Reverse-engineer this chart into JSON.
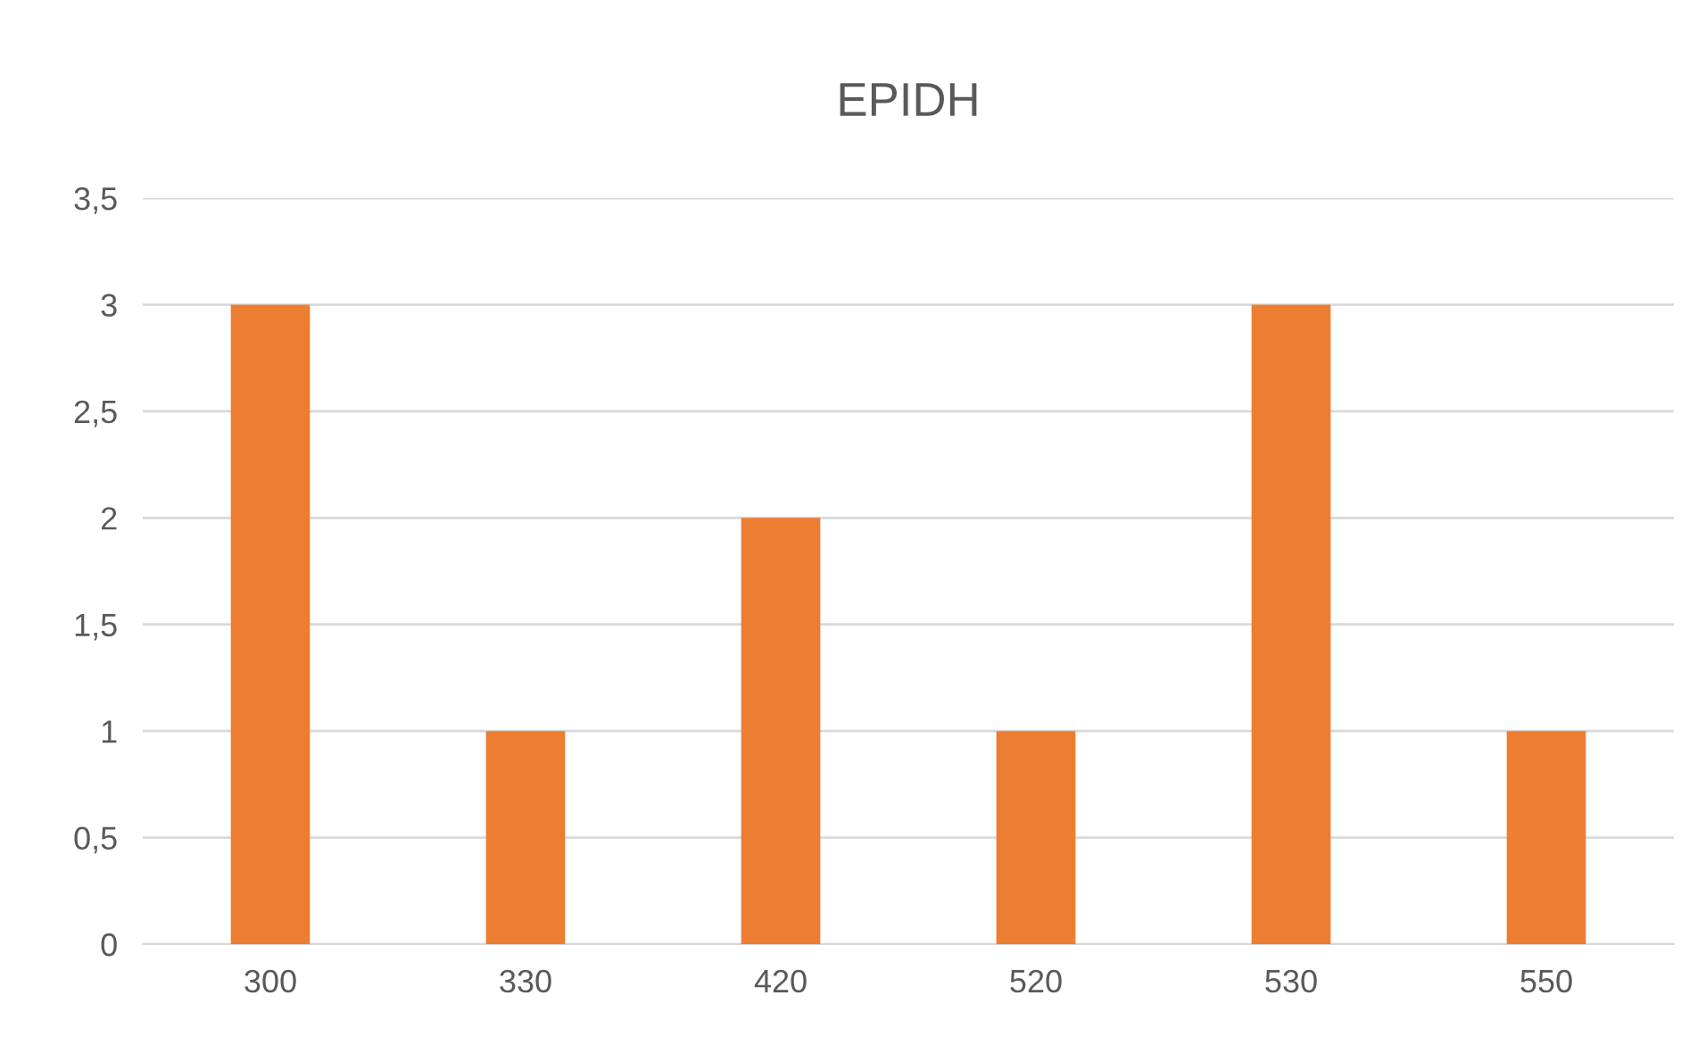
{
  "chart_data": {
    "type": "bar",
    "title": "EPIDH",
    "categories": [
      "300",
      "330",
      "420",
      "520",
      "530",
      "550"
    ],
    "values": [
      3,
      1,
      2,
      1,
      3,
      1
    ],
    "color": "#ed7d31",
    "ylim": [
      0,
      3.5
    ],
    "yticks": [
      0,
      {
        "value": 0.5,
        "label": "0,5"
      },
      1,
      {
        "value": 1.5,
        "label": "1,5"
      },
      2,
      {
        "value": 2.5,
        "label": "2,5"
      },
      3,
      {
        "value": 3.5,
        "label": "3,5"
      }
    ],
    "grid": "y"
  }
}
